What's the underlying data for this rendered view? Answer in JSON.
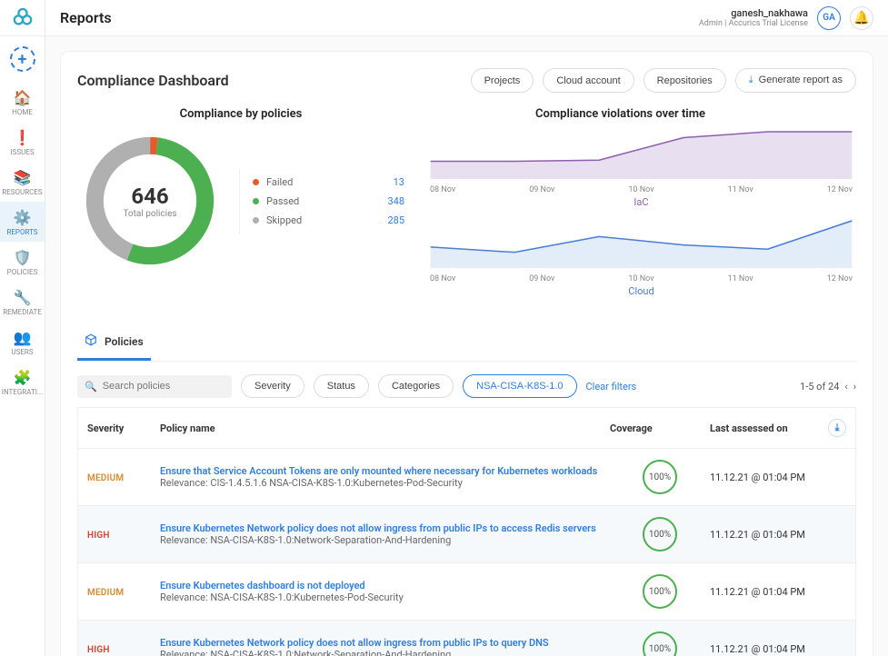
{
  "topbar": {
    "title": "Reports",
    "user_name": "ganesh_nakhawa",
    "user_meta": "Admin | Accurics Trial License",
    "avatar_initials": "GA"
  },
  "sidebar": {
    "items": [
      {
        "icon": "home",
        "label": "HOME"
      },
      {
        "icon": "alert",
        "label": "ISSUES"
      },
      {
        "icon": "layers",
        "label": "RESOURCES"
      },
      {
        "icon": "gear",
        "label": "REPORTS"
      },
      {
        "icon": "shield",
        "label": "POLICIES"
      },
      {
        "icon": "wrench",
        "label": "REMEDIATE"
      },
      {
        "icon": "users",
        "label": "USERS"
      },
      {
        "icon": "puzzle",
        "label": "INTEGRATI..."
      }
    ],
    "active_index": 3
  },
  "dashboard": {
    "title": "Compliance Dashboard",
    "actions": {
      "projects": "Projects",
      "cloud_account": "Cloud account",
      "repositories": "Repositories",
      "generate": "Generate report as"
    }
  },
  "donut": {
    "title": "Compliance by policies",
    "total": "646",
    "total_label": "Total policies",
    "legend": [
      {
        "label": "Failed",
        "value": "13",
        "color": "#e65a2e",
        "fraction": 0.02
      },
      {
        "label": "Passed",
        "value": "348",
        "color": "#4caf50",
        "fraction": 0.539
      },
      {
        "label": "Skipped",
        "value": "285",
        "color": "#b0b0b0",
        "fraction": 0.441
      }
    ]
  },
  "trend": {
    "title": "Compliance violations over time",
    "xaxis": [
      "08 Nov",
      "09 Nov",
      "10 Nov",
      "11 Nov",
      "12 Nov"
    ],
    "iac": {
      "label": "IaC",
      "color": "#8d5fb0",
      "fill": "#e8dff0",
      "points": [
        15,
        15,
        16,
        35,
        40,
        40
      ]
    },
    "cloud": {
      "label": "Cloud",
      "color": "#4a7dd6",
      "fill": "#e3edfa",
      "points": [
        20,
        15,
        30,
        22,
        18,
        45
      ]
    }
  },
  "policies_tab": {
    "label": "Policies"
  },
  "filters": {
    "search_placeholder": "Search policies",
    "severity": "Severity",
    "status": "Status",
    "categories": "Categories",
    "active_tag": "NSA-CISA-K8S-1.0",
    "clear": "Clear filters",
    "pager": "1-5 of 24"
  },
  "table": {
    "headers": {
      "severity": "Severity",
      "name": "Policy name",
      "coverage": "Coverage",
      "last": "Last assessed on"
    },
    "rows": [
      {
        "severity": "MEDIUM",
        "name": "Ensure that Service Account Tokens are only mounted where necessary for Kubernetes workloads",
        "sub": "Relevance: CIS-1.4.5.1.6 NSA-CISA-K8S-1.0:Kubernetes-Pod-Security",
        "coverage": "100%",
        "last": "11.12.21 @ 01:04 PM"
      },
      {
        "severity": "HIGH",
        "name": "Ensure Kubernetes Network policy does not allow ingress from public IPs to access Redis servers",
        "sub": "Relevance: NSA-CISA-K8S-1.0:Network-Separation-And-Hardening",
        "coverage": "100%",
        "last": "11.12.21 @ 01:04 PM"
      },
      {
        "severity": "MEDIUM",
        "name": "Ensure Kubernetes dashboard is not deployed",
        "sub": "Relevance: NSA-CISA-K8S-1.0:Kubernetes-Pod-Security",
        "coverage": "100%",
        "last": "11.12.21 @ 01:04 PM"
      },
      {
        "severity": "HIGH",
        "name": "Ensure Kubernetes Network policy does not allow ingress from public IPs to query DNS",
        "sub": "Relevance: NSA-CISA-K8S-1.0:Network-Separation-And-Hardening",
        "coverage": "100%",
        "last": "11.12.21 @ 01:04 PM"
      }
    ]
  }
}
